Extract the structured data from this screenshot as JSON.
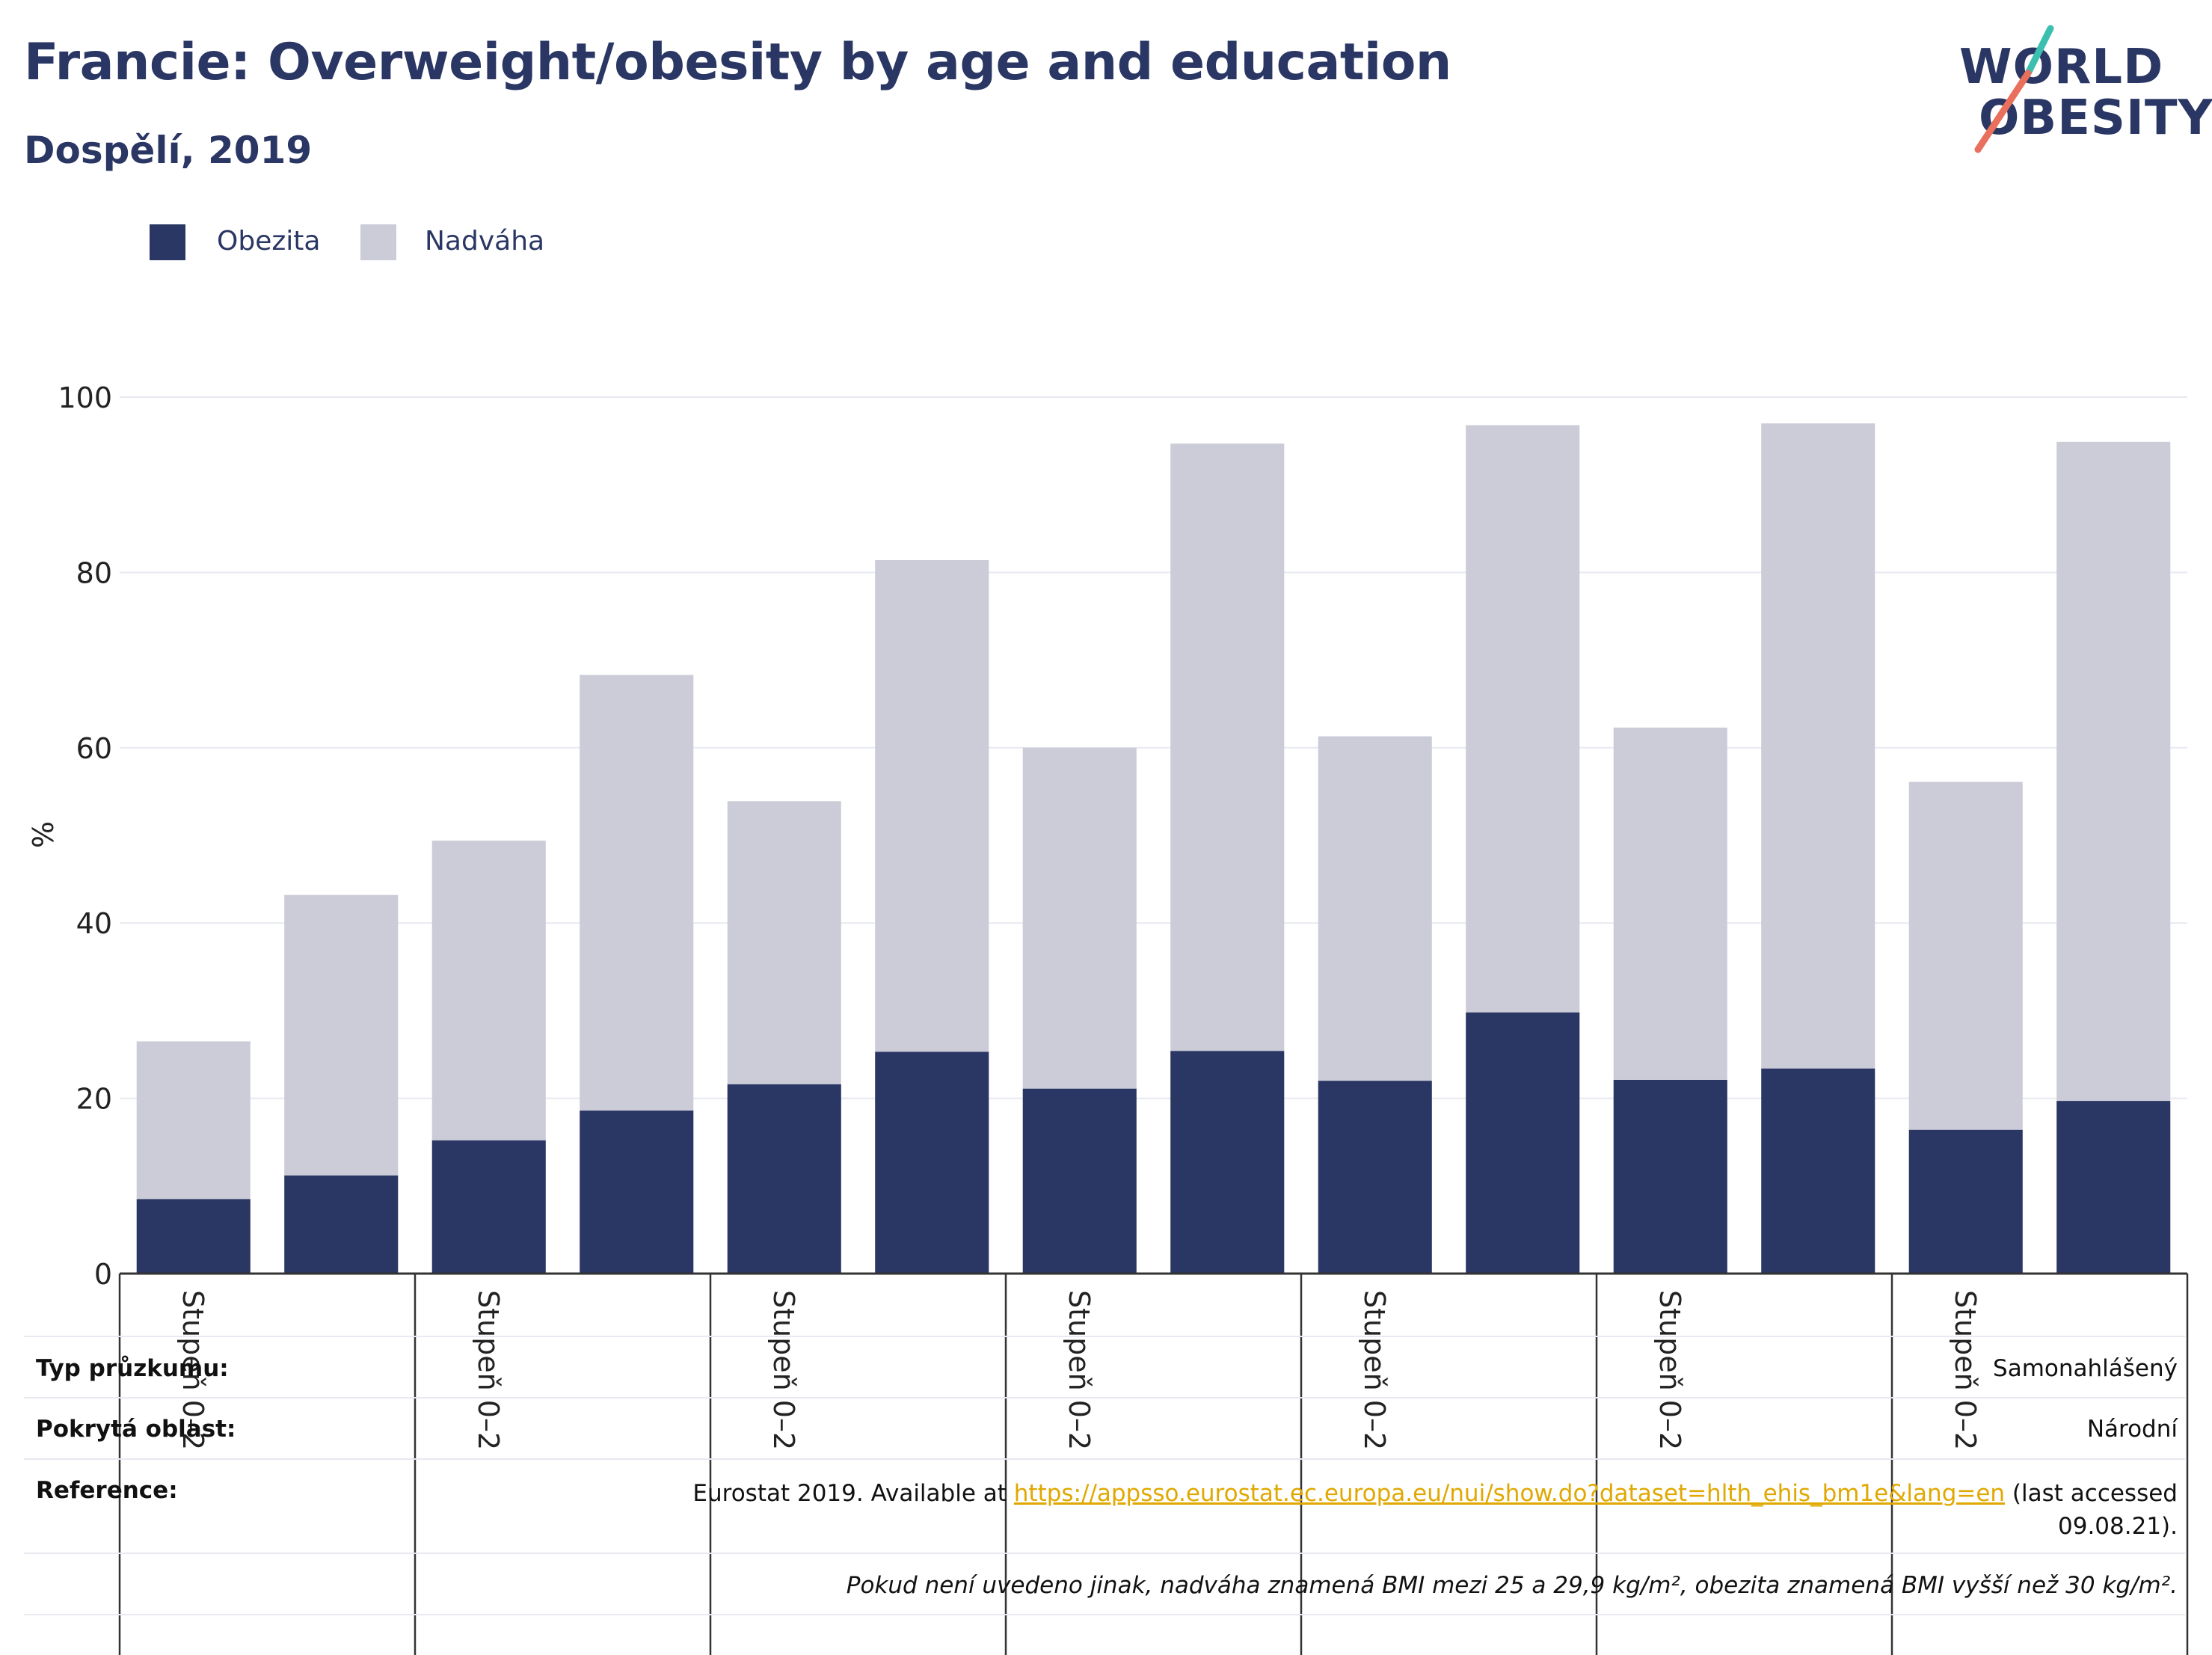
{
  "header": {
    "title": "Francie: Overweight/obesity by age and education",
    "subtitle": "Dospělí, 2019"
  },
  "logo": {
    "line1": "WORLD",
    "line2": "OBESITY"
  },
  "chart_data": {
    "type": "bar",
    "stacked": true,
    "categories": [
      "Stupeň 0–2",
      "",
      "Stupeň 0–2",
      "",
      "Stupeň 0–2",
      "",
      "Stupeň 0–2",
      "",
      "Stupeň 0–2",
      "",
      "Stupeň 0–2",
      "",
      "Stupeň 0–2",
      ""
    ],
    "series": [
      {
        "name": "Obezita",
        "color": "#2a3663",
        "values": [
          8.5,
          11.2,
          15.2,
          18.6,
          21.6,
          25.3,
          21.1,
          25.4,
          22.0,
          29.8,
          22.1,
          23.4,
          16.4,
          19.7
        ]
      },
      {
        "name": "Nadváha",
        "color": "#cbccd8",
        "values": [
          18.0,
          32.0,
          34.2,
          49.7,
          32.3,
          56.1,
          38.9,
          69.3,
          39.3,
          67.0,
          40.2,
          73.6,
          39.7,
          75.2
        ]
      }
    ],
    "ylabel": "%",
    "ylim": [
      0,
      100
    ],
    "yticks": [
      0,
      20,
      40,
      60,
      80,
      100
    ],
    "grid": true,
    "legend_position": "top-left"
  },
  "footer": {
    "survey_type_label": "Typ průzkumu:",
    "survey_type_value": "Samonahlášený",
    "area_label": "Pokrytá oblast:",
    "area_value": "Národní",
    "reference_label": "Reference:",
    "reference_prefix": "Eurostat 2019. Available at ",
    "reference_link": "https://appsso.eurostat.ec.europa.eu/nui/show.do?dataset=hlth_ehis_bm1e&lang=en",
    "reference_suffix": " (last accessed",
    "reference_date": "09.08.21).",
    "note": "Pokud není uvedeno jinak, nadváha znamená BMI mezi 25 a 29,9 kg/m², obezita znamená BMI vyšší než 30 kg/m²."
  }
}
